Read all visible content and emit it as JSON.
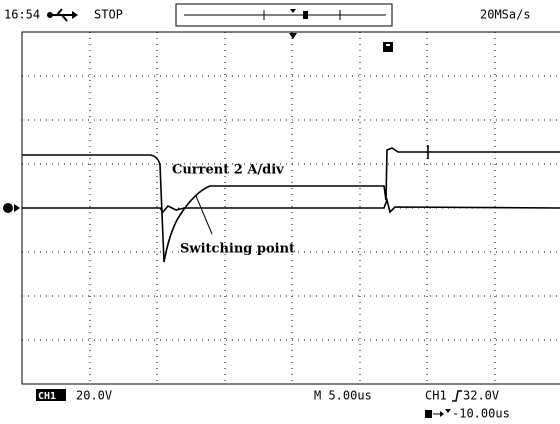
{
  "status_bar": {
    "time": "16:54",
    "state": "STOP",
    "sample_rate": "20MSa/s"
  },
  "annotations": [
    "Current 2 A/div",
    "Switching point"
  ],
  "footer": {
    "channel": "CH1",
    "volts_div": "20.0V",
    "timebase": "M 5.00us",
    "trigger_channel": "CH1",
    "trigger_level": "32.0V",
    "trigger_offset": "-10.00us"
  }
}
